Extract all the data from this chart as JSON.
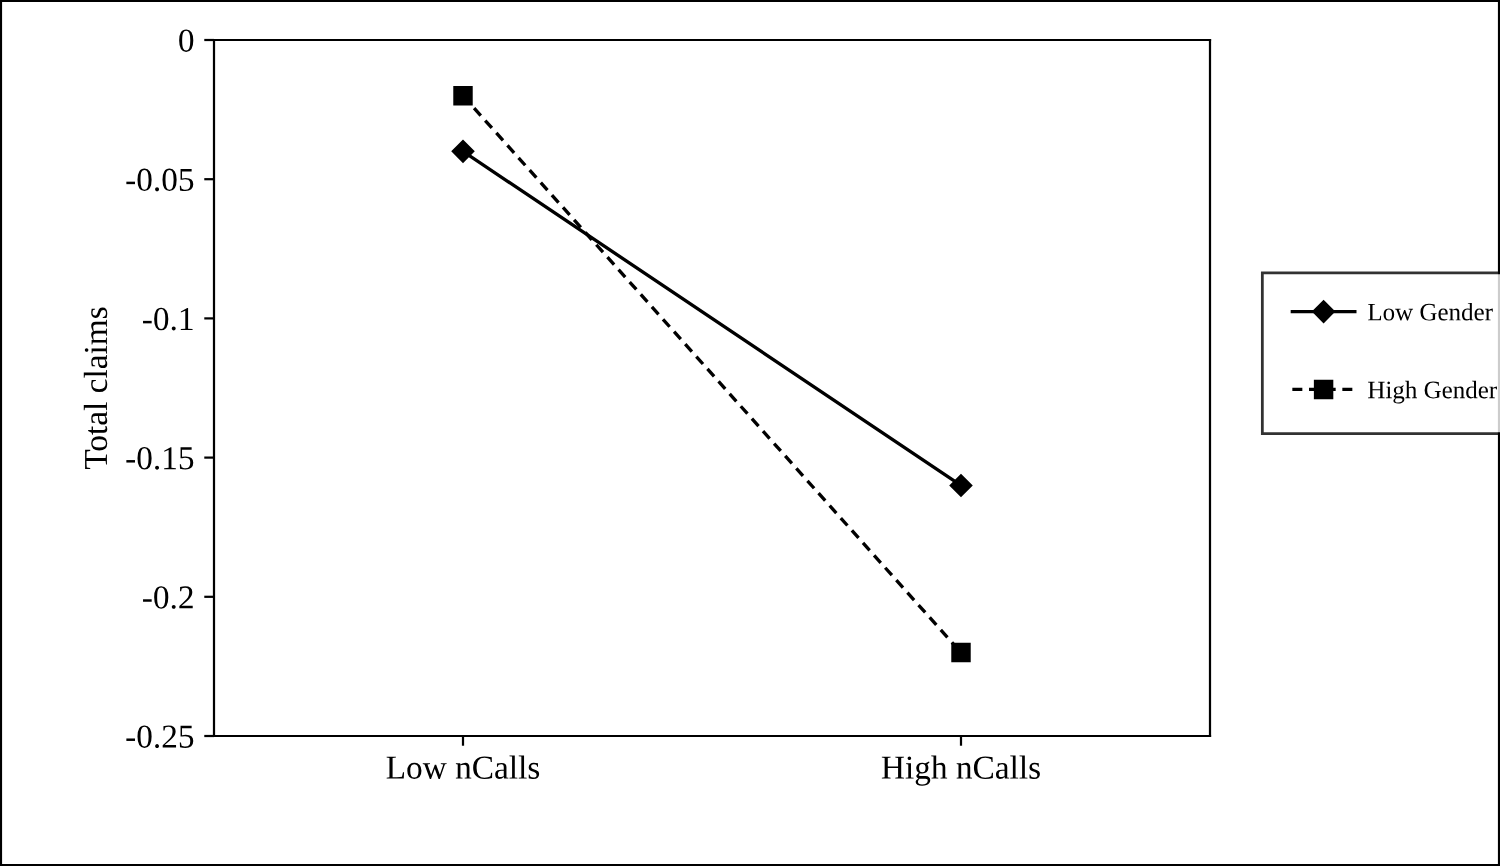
{
  "chart_data": {
    "type": "line",
    "ylabel": "Total claims",
    "categories": [
      "Low nCalls",
      "High nCalls"
    ],
    "series": [
      {
        "name": "Low Gender",
        "color": "#000000",
        "values": [
          -0.04,
          -0.16
        ],
        "marker": "diamond",
        "line_style": "solid"
      },
      {
        "name": "High Gender",
        "color": "#000000",
        "values": [
          -0.02,
          -0.22
        ],
        "marker": "square",
        "line_style": "dashed"
      }
    ],
    "ylim": [
      -0.25,
      0
    ],
    "yticks": [
      -0.25,
      -0.2,
      -0.15,
      -0.1,
      -0.05,
      0
    ],
    "grid": false,
    "legend": "right"
  }
}
